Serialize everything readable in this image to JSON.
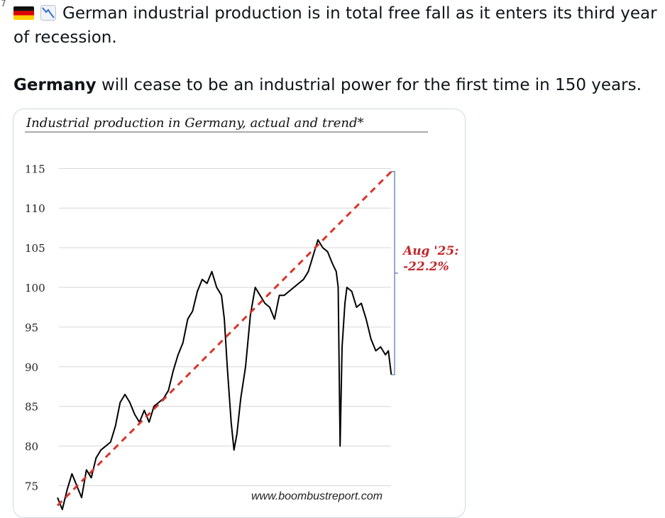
{
  "tweet": {
    "line1": "German industrial production is in total free fall as it enters its third year of recession.",
    "para2_bold": "Germany",
    "para2_rest": " will cease to be an industrial power for the first time in 150 years."
  },
  "emojis": {
    "flag": "germany-flag-icon",
    "chart": "chart-decreasing-icon"
  },
  "colors": {
    "trend": "#d9342b",
    "annotation": "#c0282b",
    "bracket": "#5b7ea8",
    "actual": "#000000"
  },
  "chart_data": {
    "type": "line",
    "title": "Industrial production in Germany, actual and trend*",
    "source": "www.boombustreport.com",
    "ylim": [
      72,
      117
    ],
    "yticks": [
      "115",
      "110",
      "105",
      "100",
      "95",
      "90",
      "85",
      "80",
      "75"
    ],
    "xlim": [
      1991.0,
      2025.8
    ],
    "annotation_label": "Aug '25:",
    "annotation_value": "-22.2%",
    "series": [
      {
        "name": "Actual",
        "style": "solid",
        "x": [
          1991.0,
          1991.5,
          1992.0,
          1992.5,
          1993.0,
          1993.5,
          1994.0,
          1994.5,
          1995.0,
          1995.5,
          1996.0,
          1996.5,
          1997.0,
          1997.5,
          1998.0,
          1998.5,
          1999.0,
          1999.5,
          2000.0,
          2000.5,
          2001.0,
          2001.5,
          2002.0,
          2002.5,
          2003.0,
          2003.5,
          2004.0,
          2004.5,
          2005.0,
          2005.5,
          2006.0,
          2006.5,
          2007.0,
          2007.5,
          2008.0,
          2008.3,
          2008.6,
          2009.0,
          2009.3,
          2009.6,
          2010.0,
          2010.5,
          2011.0,
          2011.5,
          2012.0,
          2012.5,
          2013.0,
          2013.5,
          2014.0,
          2014.5,
          2015.0,
          2015.5,
          2016.0,
          2016.5,
          2017.0,
          2017.5,
          2018.0,
          2018.5,
          2019.0,
          2019.5,
          2019.9,
          2020.1,
          2020.3,
          2020.5,
          2020.8,
          2021.0,
          2021.5,
          2022.0,
          2022.5,
          2023.0,
          2023.5,
          2024.0,
          2024.5,
          2025.0,
          2025.3,
          2025.6
        ],
        "values": [
          73.5,
          72.0,
          74.5,
          76.5,
          75.0,
          73.5,
          77.0,
          76.0,
          78.5,
          79.5,
          80.0,
          80.5,
          82.5,
          85.5,
          86.5,
          85.5,
          84.0,
          83.0,
          84.5,
          83.0,
          85.0,
          85.5,
          86.0,
          87.0,
          89.5,
          91.5,
          93.0,
          96.0,
          97.0,
          99.5,
          101.0,
          100.5,
          102.0,
          100.0,
          99.0,
          96.0,
          90.0,
          83.0,
          79.5,
          81.5,
          86.0,
          90.0,
          96.5,
          100.0,
          99.0,
          98.0,
          97.5,
          96.0,
          99.0,
          99.0,
          99.5,
          100.0,
          100.5,
          101.0,
          102.0,
          104.0,
          106.0,
          105.0,
          104.5,
          103.0,
          102.0,
          100.0,
          80.0,
          92.5,
          98.0,
          100.0,
          99.5,
          97.5,
          98.0,
          96.0,
          93.5,
          92.0,
          92.5,
          91.5,
          92.0,
          89.0
        ]
      },
      {
        "name": "Trend",
        "style": "dashed",
        "x": [
          1991.0,
          2025.6
        ],
        "values": [
          72.5,
          114.6
        ]
      }
    ]
  }
}
